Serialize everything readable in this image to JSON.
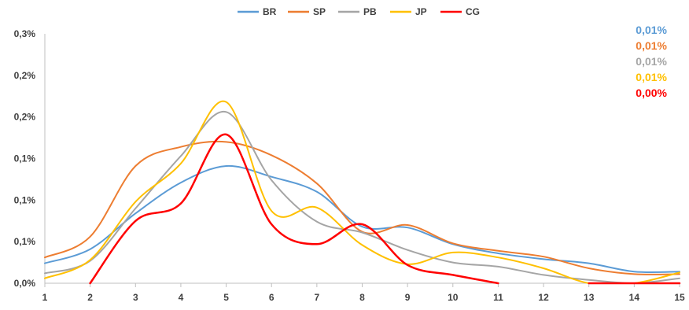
{
  "chart_data": {
    "type": "line",
    "x": [
      1,
      2,
      3,
      4,
      5,
      6,
      7,
      8,
      9,
      10,
      11,
      12,
      13,
      14,
      15
    ],
    "x_tick_labels": [
      "1",
      "2",
      "3",
      "4",
      "5",
      "6",
      "7",
      "8",
      "9",
      "10",
      "11",
      "12",
      "13",
      "14",
      "15"
    ],
    "y_tick_labels": [
      "0,0%",
      "0,1%",
      "0,1%",
      "0,1%",
      "0,2%",
      "0,2%",
      "0,3%"
    ],
    "ylim": [
      0,
      0.003
    ],
    "y_ticks": [
      0,
      0.0005,
      0.001,
      0.0015,
      0.002,
      0.0025,
      0.003
    ],
    "grid": false,
    "legend_position": "top-center",
    "series": [
      {
        "name": "BR",
        "color": "#5b9bd5",
        "values": [
          0.00024,
          0.00041,
          0.00084,
          0.00121,
          0.00141,
          0.00128,
          0.0011,
          0.00068,
          0.00067,
          0.00047,
          0.00036,
          0.00029,
          0.00024,
          0.00014,
          0.00014
        ]
      },
      {
        "name": "SP",
        "color": "#ed7d31",
        "values": [
          0.00031,
          0.00056,
          0.00141,
          0.00164,
          0.0017,
          0.00154,
          0.0012,
          0.00062,
          0.0007,
          0.00048,
          0.00039,
          0.00032,
          0.00018,
          0.00011,
          0.00011
        ]
      },
      {
        "name": "PB",
        "color": "#a5a5a5",
        "values": [
          0.00012,
          0.00027,
          0.0009,
          0.00153,
          0.00206,
          0.00124,
          0.00074,
          0.00061,
          0.0004,
          0.00025,
          0.0002,
          0.0001,
          4e-05,
          0.0,
          6e-05
        ]
      },
      {
        "name": "JP",
        "color": "#ffc000",
        "values": [
          6e-05,
          0.00028,
          0.00098,
          0.00144,
          0.00218,
          0.00087,
          0.00091,
          0.00046,
          0.00023,
          0.00037,
          0.00031,
          0.00018,
          0.0,
          0.0,
          0.00013
        ]
      },
      {
        "name": "CG",
        "color": "#ff0000",
        "values": [
          null,
          0.0,
          0.00075,
          0.00096,
          0.00179,
          0.00071,
          0.00047,
          0.00071,
          0.00022,
          0.0001,
          0.0,
          null,
          0.0,
          0.0,
          0.0
        ]
      }
    ],
    "annotations": [
      {
        "text": "0,01%",
        "color": "#5b9bd5"
      },
      {
        "text": "0,01%",
        "color": "#ed7d31"
      },
      {
        "text": "0,01%",
        "color": "#a5a5a5"
      },
      {
        "text": "0,01%",
        "color": "#ffc000"
      },
      {
        "text": "0,00%",
        "color": "#ff0000"
      }
    ]
  }
}
